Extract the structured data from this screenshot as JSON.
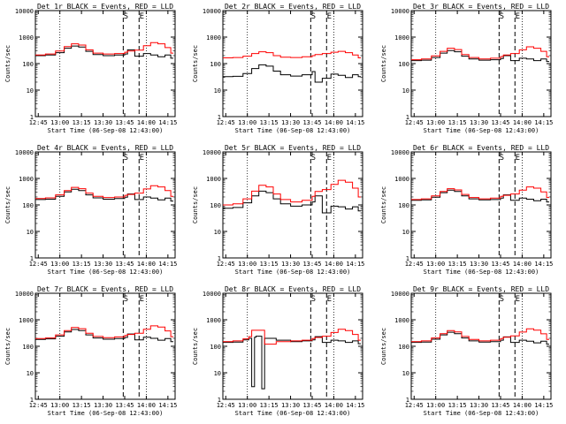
{
  "figure": {
    "series_colors": {
      "events": "#000000",
      "lld": "#ff0000"
    },
    "marker_labels": [
      "S",
      "E"
    ]
  },
  "chart_data": [
    {
      "type": "line",
      "title": "Det 1r BLACK = Events, RED = LLD",
      "xlabel": "Start Time (06-Sep-08 12:43:00)",
      "ylabel": "Counts/sec",
      "x_ticks": [
        "12:45",
        "13:00",
        "13:15",
        "13:30",
        "13:45",
        "14:00",
        "14:15"
      ],
      "y_scale": "log",
      "ylim": [
        1,
        10000
      ],
      "y_ticks": [
        "1",
        "10",
        "100",
        "1000",
        "10000"
      ],
      "x": [
        "12:43",
        "12:50",
        "12:57",
        "13:03",
        "13:08",
        "13:13",
        "13:18",
        "13:23",
        "13:30",
        "13:38",
        "13:45",
        "13:47",
        "13:52",
        "13:58",
        "14:03",
        "14:08",
        "14:13",
        "14:17"
      ],
      "series": [
        {
          "name": "Events",
          "color": "#000000",
          "values": [
            200,
            210,
            260,
            380,
            460,
            420,
            290,
            220,
            200,
            210,
            230,
            330,
            190,
            240,
            210,
            180,
            210,
            160
          ]
        },
        {
          "name": "LLD",
          "color": "#ff0000",
          "values": [
            210,
            230,
            300,
            440,
            560,
            500,
            330,
            250,
            230,
            240,
            270,
            300,
            320,
            470,
            620,
            560,
            400,
            250
          ]
        }
      ],
      "markers": [
        {
          "label": "S",
          "x": "13:44"
        },
        {
          "label": "E",
          "x": "13:55"
        }
      ]
    },
    {
      "type": "line",
      "title": "Det 2r BLACK = Events, RED = LLD",
      "xlabel": "Start Time (06-Sep-08 12:43:00)",
      "ylabel": "Counts/sec",
      "x_ticks": [
        "12:45",
        "13:00",
        "13:15",
        "13:30",
        "13:45",
        "14:00",
        "14:15"
      ],
      "y_scale": "log",
      "ylim": [
        1,
        10000
      ],
      "y_ticks": [
        "1",
        "10",
        "100",
        "1000",
        "10000"
      ],
      "x": [
        "12:43",
        "12:50",
        "12:57",
        "13:03",
        "13:08",
        "13:13",
        "13:18",
        "13:23",
        "13:30",
        "13:38",
        "13:45",
        "13:47",
        "13:52",
        "13:58",
        "14:03",
        "14:08",
        "14:13",
        "14:17"
      ],
      "series": [
        {
          "name": "Events",
          "color": "#000000",
          "values": [
            32,
            33,
            42,
            65,
            90,
            80,
            52,
            38,
            34,
            38,
            50,
            20,
            28,
            40,
            36,
            30,
            38,
            32
          ]
        },
        {
          "name": "LLD",
          "color": "#ff0000",
          "values": [
            165,
            170,
            190,
            240,
            280,
            260,
            200,
            175,
            170,
            180,
            200,
            220,
            240,
            270,
            290,
            260,
            210,
            165
          ]
        }
      ],
      "markers": [
        {
          "label": "S",
          "x": "13:44"
        },
        {
          "label": "E",
          "x": "13:55"
        }
      ]
    },
    {
      "type": "line",
      "title": "Det 3r BLACK = Events, RED = LLD",
      "xlabel": "Start Time (06-Sep-08 12:43:00)",
      "ylabel": "Counts/sec",
      "x_ticks": [
        "12:45",
        "13:00",
        "13:15",
        "13:30",
        "13:45",
        "14:00",
        "14:15"
      ],
      "y_scale": "log",
      "ylim": [
        1,
        10000
      ],
      "y_ticks": [
        "1",
        "10",
        "100",
        "1000",
        "10000"
      ],
      "x": [
        "12:43",
        "12:50",
        "12:57",
        "13:03",
        "13:08",
        "13:13",
        "13:18",
        "13:23",
        "13:30",
        "13:38",
        "13:45",
        "13:47",
        "13:52",
        "13:58",
        "14:03",
        "14:08",
        "14:13",
        "14:17"
      ],
      "series": [
        {
          "name": "Events",
          "color": "#000000",
          "values": [
            130,
            135,
            170,
            250,
            310,
            280,
            190,
            150,
            135,
            140,
            155,
            200,
            130,
            160,
            150,
            130,
            150,
            120
          ]
        },
        {
          "name": "LLD",
          "color": "#ff0000",
          "values": [
            140,
            150,
            195,
            290,
            380,
            340,
            220,
            170,
            150,
            160,
            185,
            210,
            240,
            330,
            430,
            380,
            290,
            180
          ]
        }
      ],
      "markers": [
        {
          "label": "S",
          "x": "13:44"
        },
        {
          "label": "E",
          "x": "13:55"
        }
      ]
    },
    {
      "type": "line",
      "title": "Det 4r BLACK = Events, RED = LLD",
      "xlabel": "Start Time (06-Sep-08 12:43:00)",
      "ylabel": "Counts/sec",
      "x_ticks": [
        "12:45",
        "13:00",
        "13:15",
        "13:30",
        "13:45",
        "14:00",
        "14:15"
      ],
      "y_scale": "log",
      "ylim": [
        1,
        10000
      ],
      "y_ticks": [
        "1",
        "10",
        "100",
        "1000",
        "10000"
      ],
      "x": [
        "12:43",
        "12:50",
        "12:57",
        "13:03",
        "13:08",
        "13:13",
        "13:18",
        "13:23",
        "13:30",
        "13:38",
        "13:45",
        "13:47",
        "13:52",
        "13:58",
        "14:03",
        "14:08",
        "14:13",
        "14:17"
      ],
      "series": [
        {
          "name": "Events",
          "color": "#000000",
          "values": [
            160,
            165,
            210,
            310,
            390,
            350,
            240,
            185,
            165,
            175,
            195,
            260,
            160,
            200,
            180,
            155,
            180,
            140
          ]
        },
        {
          "name": "LLD",
          "color": "#ff0000",
          "values": [
            175,
            185,
            240,
            350,
            460,
            410,
            280,
            210,
            190,
            200,
            230,
            250,
            280,
            400,
            530,
            480,
            350,
            210
          ]
        }
      ],
      "markers": [
        {
          "label": "S",
          "x": "13:44"
        },
        {
          "label": "E",
          "x": "13:55"
        }
      ]
    },
    {
      "type": "line",
      "title": "Det 5r BLACK = Events, RED = LLD",
      "xlabel": "Start Time (06-Sep-08 12:43:00)",
      "ylabel": "Counts/sec",
      "x_ticks": [
        "12:45",
        "13:00",
        "13:15",
        "13:30",
        "13:45",
        "14:00",
        "14:15"
      ],
      "y_scale": "log",
      "ylim": [
        1,
        10000
      ],
      "y_ticks": [
        "1",
        "10",
        "100",
        "1000",
        "10000"
      ],
      "x": [
        "12:43",
        "12:50",
        "12:57",
        "13:03",
        "13:08",
        "13:13",
        "13:18",
        "13:23",
        "13:30",
        "13:38",
        "13:45",
        "13:47",
        "13:52",
        "13:58",
        "14:03",
        "14:08",
        "14:13",
        "14:17"
      ],
      "series": [
        {
          "name": "Events",
          "color": "#000000",
          "values": [
            75,
            80,
            120,
            220,
            330,
            290,
            170,
            110,
            90,
            100,
            130,
            220,
            50,
            90,
            85,
            70,
            85,
            60
          ]
        },
        {
          "name": "LLD",
          "color": "#ff0000",
          "values": [
            100,
            110,
            170,
            330,
            550,
            480,
            260,
            160,
            130,
            150,
            210,
            320,
            380,
            600,
            850,
            720,
            430,
            200
          ]
        }
      ],
      "markers": [
        {
          "label": "S",
          "x": "13:44"
        },
        {
          "label": "E",
          "x": "13:55"
        }
      ]
    },
    {
      "type": "line",
      "title": "Det 6r BLACK = Events, RED = LLD",
      "xlabel": "Start Time (06-Sep-08 12:43:00)",
      "ylabel": "Counts/sec",
      "x_ticks": [
        "12:45",
        "13:00",
        "13:15",
        "13:30",
        "13:45",
        "14:00",
        "14:15"
      ],
      "y_scale": "log",
      "ylim": [
        1,
        10000
      ],
      "y_ticks": [
        "1",
        "10",
        "100",
        "1000",
        "10000"
      ],
      "x": [
        "12:43",
        "12:50",
        "12:57",
        "13:03",
        "13:08",
        "13:13",
        "13:18",
        "13:23",
        "13:30",
        "13:38",
        "13:45",
        "13:47",
        "13:52",
        "13:58",
        "14:03",
        "14:08",
        "14:13",
        "14:17"
      ],
      "series": [
        {
          "name": "Events",
          "color": "#000000",
          "values": [
            150,
            155,
            195,
            290,
            360,
            320,
            220,
            170,
            155,
            160,
            180,
            240,
            150,
            180,
            165,
            145,
            165,
            130
          ]
        },
        {
          "name": "LLD",
          "color": "#ff0000",
          "values": [
            160,
            170,
            220,
            320,
            410,
            370,
            250,
            190,
            170,
            180,
            210,
            230,
            260,
            360,
            480,
            430,
            310,
            190
          ]
        }
      ],
      "markers": [
        {
          "label": "S",
          "x": "13:44"
        },
        {
          "label": "E",
          "x": "13:55"
        }
      ]
    },
    {
      "type": "line",
      "title": "Det 7r BLACK = Events, RED = LLD",
      "xlabel": "Start Time (06-Sep-08 12:43:00)",
      "ylabel": "Counts/sec",
      "x_ticks": [
        "12:45",
        "13:00",
        "13:15",
        "13:30",
        "13:45",
        "14:00",
        "14:15"
      ],
      "y_scale": "log",
      "ylim": [
        1,
        10000
      ],
      "y_ticks": [
        "1",
        "10",
        "100",
        "1000",
        "10000"
      ],
      "x": [
        "12:43",
        "12:50",
        "12:57",
        "13:03",
        "13:08",
        "13:13",
        "13:18",
        "13:23",
        "13:30",
        "13:38",
        "13:45",
        "13:47",
        "13:52",
        "13:58",
        "14:03",
        "14:08",
        "14:13",
        "14:17"
      ],
      "series": [
        {
          "name": "Events",
          "color": "#000000",
          "values": [
            180,
            190,
            240,
            350,
            430,
            390,
            270,
            205,
            185,
            195,
            215,
            290,
            175,
            220,
            200,
            170,
            195,
            150
          ]
        },
        {
          "name": "LLD",
          "color": "#ff0000",
          "values": [
            195,
            205,
            270,
            390,
            510,
            460,
            310,
            235,
            210,
            225,
            255,
            280,
            310,
            440,
            590,
            530,
            380,
            230
          ]
        }
      ],
      "markers": [
        {
          "label": "S",
          "x": "13:44"
        },
        {
          "label": "E",
          "x": "13:55"
        }
      ]
    },
    {
      "type": "line",
      "title": "Det 8r BLACK = Events, RED = LLD",
      "xlabel": "Start Time (06-Sep-08 12:43:00)",
      "ylabel": "Counts/sec",
      "x_ticks": [
        "12:45",
        "13:00",
        "13:15",
        "13:30",
        "13:45",
        "14:00",
        "14:15"
      ],
      "y_scale": "log",
      "ylim": [
        1,
        10000
      ],
      "y_ticks": [
        "1",
        "10",
        "100",
        "1000",
        "10000"
      ],
      "x": [
        "12:43",
        "12:50",
        "12:57",
        "13:01",
        "13:03",
        "13:05",
        "13:06",
        "13:10",
        "13:12",
        "13:20",
        "13:30",
        "13:38",
        "13:45",
        "13:47",
        "13:52",
        "13:58",
        "14:03",
        "14:08",
        "14:13",
        "14:17"
      ],
      "series": [
        {
          "name": "Events",
          "color": "#000000",
          "values": [
            140,
            145,
            175,
            200,
            3,
            220,
            240,
            2.5,
            200,
            170,
            150,
            160,
            175,
            230,
            140,
            170,
            160,
            140,
            160,
            125
          ]
        },
        {
          "name": "LLD",
          "color": "#ff0000",
          "values": [
            150,
            160,
            190,
            230,
            400,
            400,
            400,
            400,
            120,
            150,
            160,
            170,
            195,
            215,
            240,
            330,
            440,
            390,
            280,
            170
          ]
        }
      ],
      "markers": [
        {
          "label": "S",
          "x": "13:44"
        },
        {
          "label": "E",
          "x": "13:55"
        }
      ]
    },
    {
      "type": "line",
      "title": "Det 9r BLACK = Events, RED = LLD",
      "xlabel": "Start Time (06-Sep-08 12:43:00)",
      "ylabel": "Counts/sec",
      "x_ticks": [
        "12:45",
        "13:00",
        "13:15",
        "13:30",
        "13:45",
        "14:00",
        "14:15"
      ],
      "y_scale": "log",
      "ylim": [
        1,
        10000
      ],
      "y_ticks": [
        "1",
        "10",
        "100",
        "1000",
        "10000"
      ],
      "x": [
        "12:43",
        "12:50",
        "12:57",
        "13:03",
        "13:08",
        "13:13",
        "13:18",
        "13:23",
        "13:30",
        "13:38",
        "13:45",
        "13:47",
        "13:52",
        "13:58",
        "14:03",
        "14:08",
        "14:13",
        "14:17"
      ],
      "series": [
        {
          "name": "Events",
          "color": "#000000",
          "values": [
            140,
            145,
            185,
            270,
            340,
            300,
            205,
            160,
            145,
            150,
            170,
            225,
            140,
            170,
            155,
            135,
            155,
            120
          ]
        },
        {
          "name": "LLD",
          "color": "#ff0000",
          "values": [
            150,
            160,
            205,
            300,
            390,
            350,
            235,
            180,
            160,
            170,
            195,
            220,
            245,
            345,
            455,
            405,
            295,
            180
          ]
        }
      ],
      "markers": [
        {
          "label": "S",
          "x": "13:44"
        },
        {
          "label": "E",
          "x": "13:55"
        }
      ]
    }
  ]
}
